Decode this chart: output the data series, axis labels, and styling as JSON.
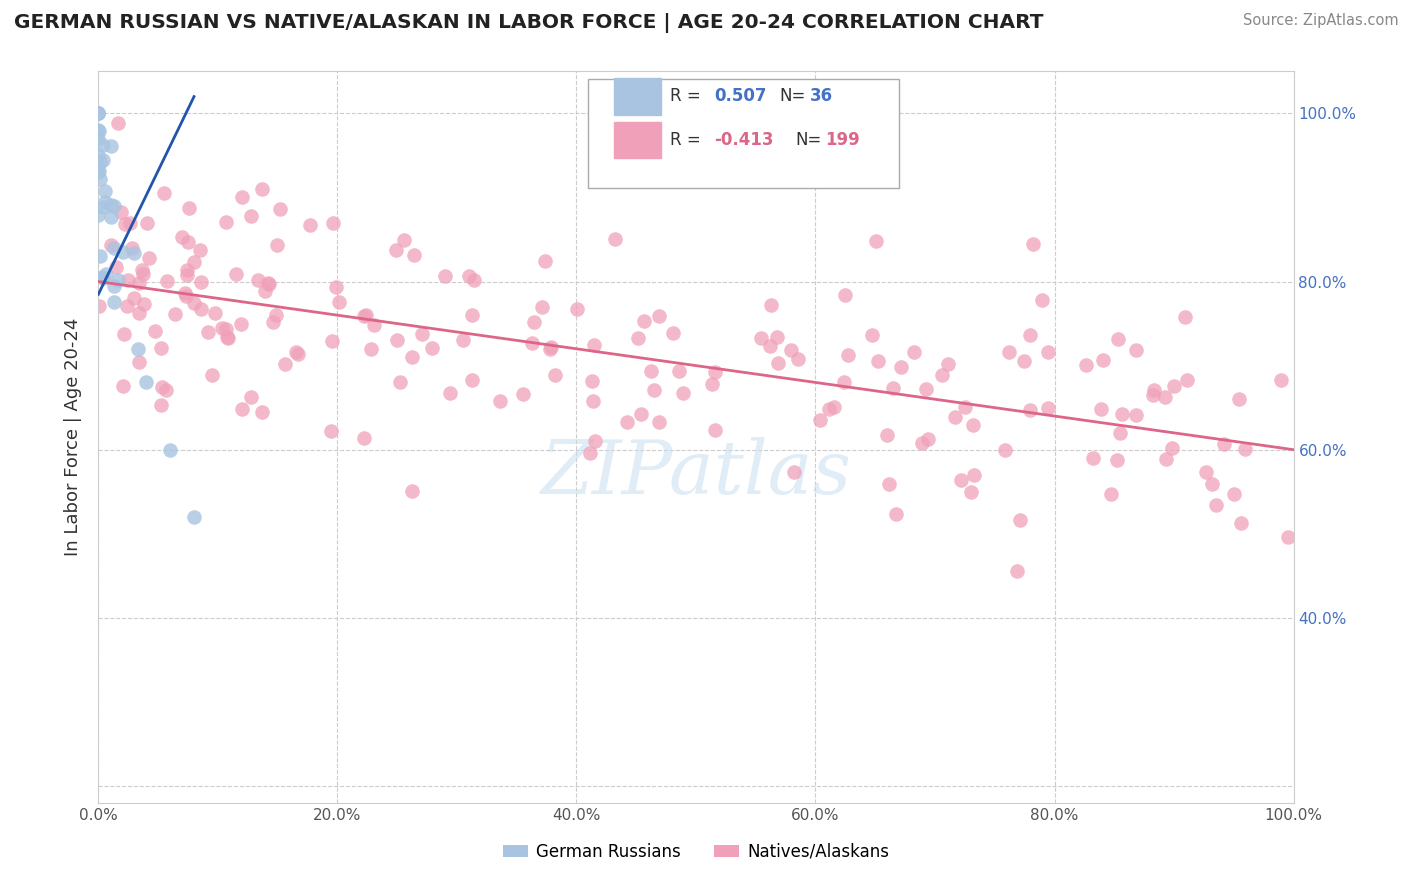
{
  "title": "GERMAN RUSSIAN VS NATIVE/ALASKAN IN LABOR FORCE | AGE 20-24 CORRELATION CHART",
  "source": "Source: ZipAtlas.com",
  "ylabel": "In Labor Force | Age 20-24",
  "blue_color": "#a8c4e0",
  "pink_color": "#f0a0b8",
  "blue_line_color": "#2255aa",
  "pink_line_color": "#dd6688",
  "xmin": 0.0,
  "xmax": 1.0,
  "ymin": 0.18,
  "ymax": 1.05,
  "right_ytick_positions": [
    0.4,
    0.6,
    0.8,
    1.0
  ],
  "right_ytick_labels": [
    "40.0%",
    "60.0%",
    "80.0%",
    "100.0%"
  ],
  "xtick_positions": [
    0.0,
    0.2,
    0.4,
    0.6,
    0.8,
    1.0
  ],
  "xtick_labels": [
    "0.0%",
    "20.0%",
    "40.0%",
    "60.0%",
    "80.0%",
    "100.0%"
  ],
  "grid_color": "#cccccc",
  "background_color": "#ffffff",
  "watermark_color": "#c8ddf0",
  "legend_r_blue": "0.507",
  "legend_n_blue": "36",
  "legend_r_pink": "-0.413",
  "legend_n_pink": "199"
}
